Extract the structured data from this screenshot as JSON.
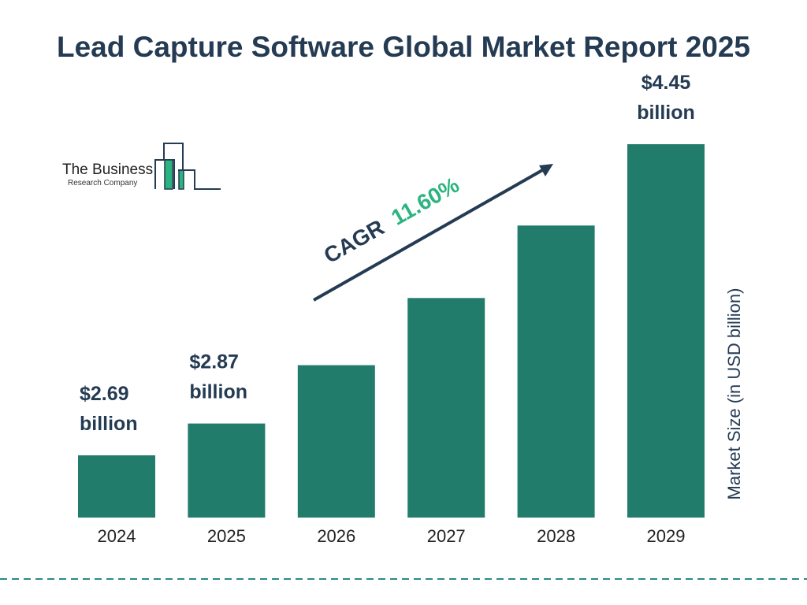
{
  "title": "Lead Capture Software Global Market Report 2025",
  "logo": {
    "line1": "The Business",
    "line2": "Research Company"
  },
  "colors": {
    "bar": "#217c6b",
    "text": "#243b53",
    "cagr": "#2bb380",
    "divider": "#2a8a8a"
  },
  "chart_data": {
    "type": "bar",
    "categories": [
      "2024",
      "2025",
      "2026",
      "2027",
      "2028",
      "2029"
    ],
    "values": [
      2.69,
      2.87,
      3.2,
      3.58,
      3.99,
      4.45
    ],
    "data_labels": [
      "$2.69 billion",
      "$2.87 billion",
      "",
      "",
      "",
      "$4.45 billion"
    ],
    "ylabel": "Market Size (in USD billion)",
    "xlabel": "",
    "annotation": {
      "cagr_label": "CAGR",
      "cagr_value": "11.60%"
    },
    "grid": false,
    "legend": "none"
  }
}
